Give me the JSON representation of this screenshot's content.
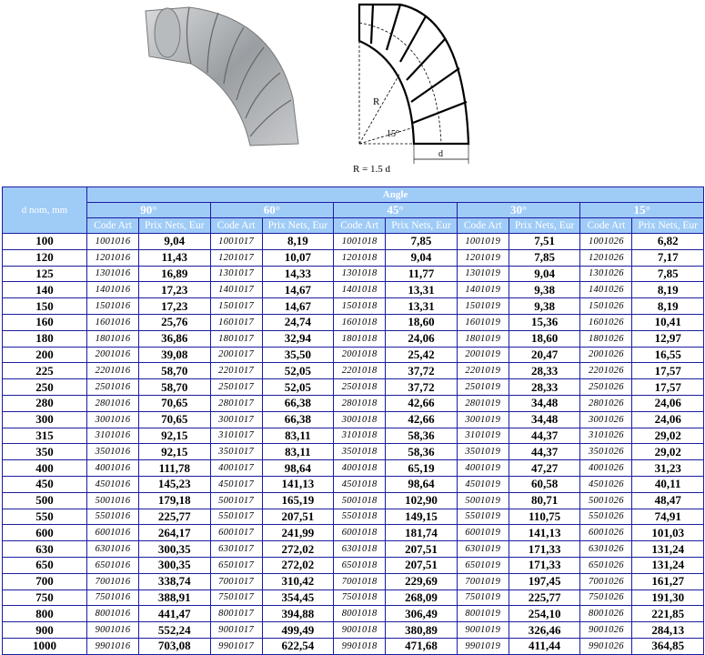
{
  "diagram": {
    "r_label": "R",
    "angle_label": "15°",
    "d_label": "d",
    "formula": "R = 1.5 d"
  },
  "table": {
    "header_d": "d nom, mm",
    "header_angle": "Angle",
    "angles": [
      "90°",
      "60°",
      "45°",
      "30°",
      "15°"
    ],
    "sub_code": "Code Art",
    "sub_price": "Prix Nets, Eur",
    "rows": [
      [
        "100",
        "1001016",
        "9,04",
        "1001017",
        "8,19",
        "1001018",
        "7,85",
        "1001019",
        "7,51",
        "1001026",
        "6,82"
      ],
      [
        "120",
        "1201016",
        "11,43",
        "1201017",
        "10,07",
        "1201018",
        "9,04",
        "1201019",
        "7,85",
        "1201026",
        "7,17"
      ],
      [
        "125",
        "1301016",
        "16,89",
        "1301017",
        "14,33",
        "1301018",
        "11,77",
        "1301019",
        "9,04",
        "1301026",
        "7,85"
      ],
      [
        "140",
        "1401016",
        "17,23",
        "1401017",
        "14,67",
        "1401018",
        "13,31",
        "1401019",
        "9,38",
        "1401026",
        "8,19"
      ],
      [
        "150",
        "1501016",
        "17,23",
        "1501017",
        "14,67",
        "1501018",
        "13,31",
        "1501019",
        "9,38",
        "1501026",
        "8,19"
      ],
      [
        "160",
        "1601016",
        "25,76",
        "1601017",
        "24,74",
        "1601018",
        "18,60",
        "1601019",
        "15,36",
        "1601026",
        "10,41"
      ],
      [
        "180",
        "1801016",
        "36,86",
        "1801017",
        "32,94",
        "1801018",
        "24,06",
        "1801019",
        "18,60",
        "1801026",
        "12,97"
      ],
      [
        "200",
        "2001016",
        "39,08",
        "2001017",
        "35,50",
        "2001018",
        "25,42",
        "2001019",
        "20,47",
        "2001026",
        "16,55"
      ],
      [
        "225",
        "2201016",
        "58,70",
        "2201017",
        "52,05",
        "2201018",
        "37,72",
        "2201019",
        "28,33",
        "2201026",
        "17,57"
      ],
      [
        "250",
        "2501016",
        "58,70",
        "2501017",
        "52,05",
        "2501018",
        "37,72",
        "2501019",
        "28,33",
        "2501026",
        "17,57"
      ],
      [
        "280",
        "2801016",
        "70,65",
        "2801017",
        "66,38",
        "2801018",
        "42,66",
        "2801019",
        "34,48",
        "2801026",
        "24,06"
      ],
      [
        "300",
        "3001016",
        "70,65",
        "3001017",
        "66,38",
        "3001018",
        "42,66",
        "3001019",
        "34,48",
        "3001026",
        "24,06"
      ],
      [
        "315",
        "3101016",
        "92,15",
        "3101017",
        "83,11",
        "3101018",
        "58,36",
        "3101019",
        "44,37",
        "3101026",
        "29,02"
      ],
      [
        "350",
        "3501016",
        "92,15",
        "3501017",
        "83,11",
        "3501018",
        "58,36",
        "3501019",
        "44,37",
        "3501026",
        "29,02"
      ],
      [
        "400",
        "4001016",
        "111,78",
        "4001017",
        "98,64",
        "4001018",
        "65,19",
        "4001019",
        "47,27",
        "4001026",
        "31,23"
      ],
      [
        "450",
        "4501016",
        "145,23",
        "4501017",
        "141,13",
        "4501018",
        "98,64",
        "4501019",
        "60,58",
        "4501026",
        "40,11"
      ],
      [
        "500",
        "5001016",
        "179,18",
        "5001017",
        "165,19",
        "5001018",
        "102,90",
        "5001019",
        "80,71",
        "5001026",
        "48,47"
      ],
      [
        "550",
        "5501016",
        "225,77",
        "5501017",
        "207,51",
        "5501018",
        "149,15",
        "5501019",
        "110,75",
        "5501026",
        "74,91"
      ],
      [
        "600",
        "6001016",
        "264,17",
        "6001017",
        "241,99",
        "6001018",
        "181,74",
        "6001019",
        "141,13",
        "6001026",
        "101,03"
      ],
      [
        "630",
        "6301016",
        "300,35",
        "6301017",
        "272,02",
        "6301018",
        "207,51",
        "6301019",
        "171,33",
        "6301026",
        "131,24"
      ],
      [
        "650",
        "6501016",
        "300,35",
        "6501017",
        "272,02",
        "6501018",
        "207,51",
        "6501019",
        "171,33",
        "6501026",
        "131,24"
      ],
      [
        "700",
        "7001016",
        "338,74",
        "7001017",
        "310,42",
        "7001018",
        "229,69",
        "7001019",
        "197,45",
        "7001026",
        "161,27"
      ],
      [
        "750",
        "7501016",
        "388,91",
        "7501017",
        "354,45",
        "7501018",
        "268,09",
        "7501019",
        "225,77",
        "7501026",
        "191,30"
      ],
      [
        "800",
        "8001016",
        "441,47",
        "8001017",
        "394,88",
        "8001018",
        "306,49",
        "8001019",
        "254,10",
        "8001026",
        "221,85"
      ],
      [
        "900",
        "9001016",
        "552,24",
        "9001017",
        "499,49",
        "9001018",
        "380,89",
        "9001019",
        "326,46",
        "9001026",
        "284,13"
      ],
      [
        "1000",
        "9901016",
        "703,08",
        "9901017",
        "622,54",
        "9901018",
        "471,68",
        "9901019",
        "411,44",
        "9901026",
        "364,85"
      ]
    ]
  },
  "colors": {
    "header_bg": "#9fcbf7",
    "border": "#1c1ca0"
  }
}
